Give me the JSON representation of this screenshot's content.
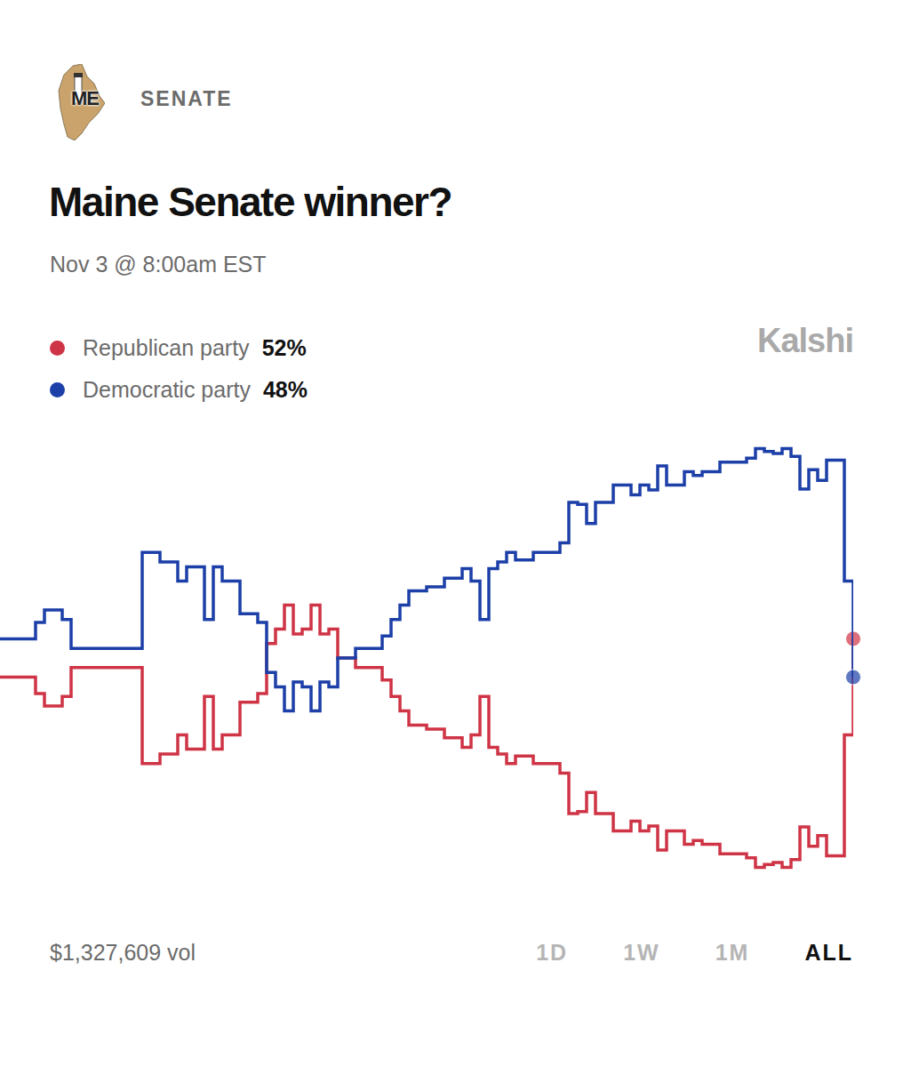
{
  "chart_data": {
    "type": "line",
    "state": "ME",
    "section": "SENATE",
    "title": "Maine Senate winner?",
    "subtitle": "Nov 3 @ 8:00am EST",
    "brand": "Kalshi",
    "footer": "$1,327,609 vol",
    "ranges": [
      "1D",
      "1W",
      "1M",
      "ALL"
    ],
    "selected_range": "ALL",
    "categories": [
      null,
      null,
      null,
      null,
      null,
      null,
      null,
      null,
      null,
      null,
      null,
      null,
      null,
      null,
      null,
      null,
      null,
      null,
      null,
      null,
      null,
      null,
      null,
      null,
      null,
      null,
      null,
      null,
      null,
      null,
      null,
      null,
      null,
      null,
      null,
      null,
      null,
      null,
      null,
      null,
      null,
      null,
      null,
      null,
      null,
      null,
      null,
      null,
      null,
      null,
      null,
      null,
      null,
      null,
      null,
      null,
      null,
      null,
      null,
      null,
      null,
      null,
      null,
      null,
      null,
      null,
      null,
      null,
      null,
      null,
      null,
      null,
      null,
      null,
      null,
      null,
      null,
      null,
      null,
      null,
      null,
      null,
      null,
      null,
      null,
      null,
      null,
      null,
      null,
      null,
      null,
      null,
      null,
      null,
      null,
      null,
      null
    ],
    "series": [
      {
        "name": "Republican party",
        "color": "#cf3446",
        "current_label": "52%",
        "values": [
          48,
          48,
          48,
          48,
          46.3,
          45,
          45,
          46,
          49,
          49,
          49,
          49,
          49,
          49,
          49,
          49,
          39,
          39,
          40,
          40,
          42,
          40.5,
          40.5,
          46,
          40.5,
          42,
          42,
          45.4,
          45.4,
          46.3,
          51.5,
          53,
          55.5,
          52.5,
          53,
          55.5,
          52.5,
          53,
          50,
          50,
          49,
          49,
          49,
          47.7,
          46,
          44.5,
          43,
          43,
          42.6,
          42.6,
          41.7,
          41.7,
          40.7,
          42,
          46,
          40.7,
          40,
          39,
          39.8,
          39.8,
          39,
          39,
          39,
          38,
          33.8,
          34,
          36,
          33.8,
          33.8,
          32,
          32,
          33,
          32,
          32.5,
          30,
          32,
          32,
          30.6,
          31,
          30.6,
          30.6,
          29.6,
          29.6,
          29.6,
          29.2,
          28.2,
          28.5,
          28.7,
          28.2,
          29,
          32.4,
          30.4,
          31.5,
          29.4,
          29.4,
          42,
          52
        ]
      },
      {
        "name": "Democratic party",
        "color": "#1c3fa8",
        "current_label": "48%",
        "values": [
          52,
          52,
          52,
          52,
          53.7,
          55,
          55,
          54,
          51,
          51,
          51,
          51,
          51,
          51,
          51,
          51,
          61,
          61,
          60,
          60,
          58,
          59.5,
          59.5,
          54,
          59.5,
          58,
          58,
          54.6,
          54.6,
          53.7,
          48.5,
          47,
          44.5,
          47.5,
          47,
          44.5,
          47.5,
          47,
          50,
          50,
          51,
          51,
          51,
          52.3,
          54,
          55.5,
          57,
          57,
          57.4,
          57.4,
          58.3,
          58.3,
          59.3,
          58,
          54,
          59.3,
          60,
          61,
          60.2,
          60.2,
          61,
          61,
          61,
          62,
          66.2,
          66,
          64,
          66.2,
          66.2,
          68,
          68,
          67,
          68,
          67.5,
          70,
          68,
          68,
          69.4,
          69,
          69.4,
          69.4,
          70.4,
          70.4,
          70.4,
          70.8,
          71.8,
          71.5,
          71.3,
          71.8,
          71,
          67.6,
          69.6,
          68.5,
          70.6,
          70.6,
          58,
          48
        ]
      }
    ],
    "ylim": [
      25,
      75
    ],
    "grid": false,
    "tick_labels": false,
    "legend": "top-left",
    "line_style": "step",
    "marker": "end"
  }
}
